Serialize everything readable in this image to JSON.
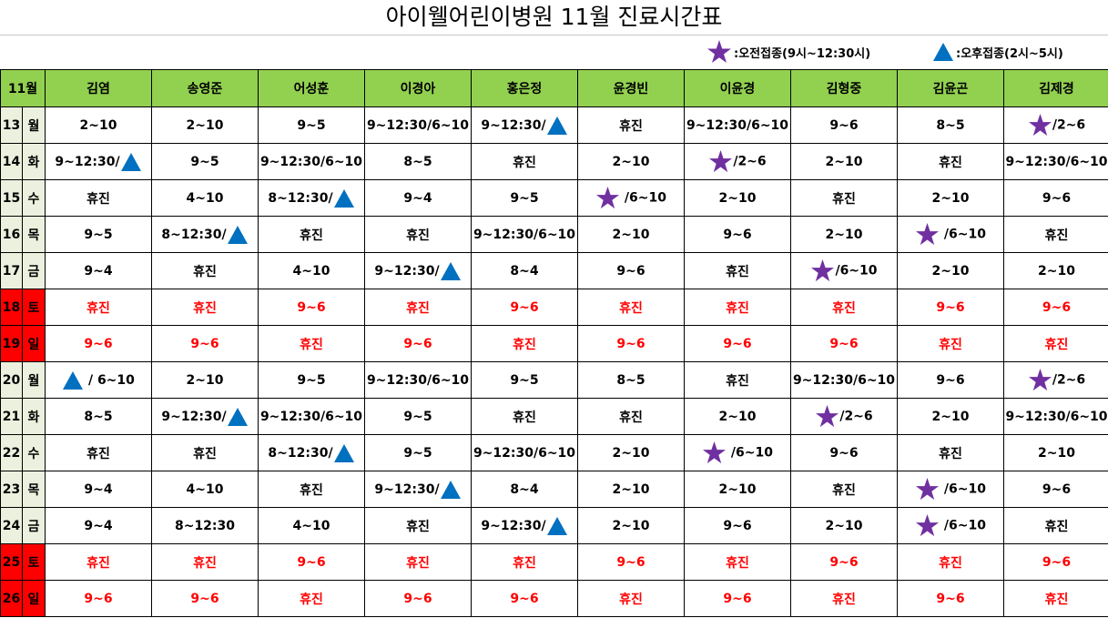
{
  "title": "아이웰어린이병원  11월  진료시간표",
  "legend": {
    "am_label": ":오전접종(9시~12:30시)",
    "pm_label": ":오후접종(2시~5시)",
    "am_icon": "star-icon",
    "pm_icon": "triangle-icon",
    "star_color": "#7030a0",
    "triangle_color": "#0070c0"
  },
  "colors": {
    "header_bg": "#92d050",
    "day_bg": "#ebf1de",
    "weekend_bg": "#ff0000",
    "weekend_text": "#ff0000"
  },
  "month_label": "11월",
  "doctors": [
    "김염",
    "송영준",
    "어성훈",
    "이경아",
    "홍은정",
    "윤경빈",
    "이윤경",
    "김형중",
    "김윤곤",
    "김제경"
  ],
  "rows": [
    {
      "day": "13",
      "weekday": "월",
      "weekend": false,
      "cells": [
        {
          "text": "2~10"
        },
        {
          "text": "2~10"
        },
        {
          "text": "9~5"
        },
        {
          "text": "9~12:30/6~10"
        },
        {
          "text": "9~12:30/",
          "icon": "triangle",
          "pos": "after"
        },
        {
          "text": "휴진"
        },
        {
          "text": "9~12:30/6~10"
        },
        {
          "text": "9~6"
        },
        {
          "text": "8~5"
        },
        {
          "text": "/2~6",
          "icon": "star",
          "pos": "before"
        }
      ]
    },
    {
      "day": "14",
      "weekday": "화",
      "weekend": false,
      "cells": [
        {
          "text": "9~12:30/",
          "icon": "triangle",
          "pos": "after"
        },
        {
          "text": "9~5"
        },
        {
          "text": "9~12:30/6~10"
        },
        {
          "text": "8~5"
        },
        {
          "text": "휴진"
        },
        {
          "text": "2~10"
        },
        {
          "text": "/2~6",
          "icon": "star",
          "pos": "before"
        },
        {
          "text": "2~10"
        },
        {
          "text": "휴진"
        },
        {
          "text": "9~12:30/6~10"
        }
      ]
    },
    {
      "day": "15",
      "weekday": "수",
      "weekend": false,
      "cells": [
        {
          "text": "휴진"
        },
        {
          "text": "4~10"
        },
        {
          "text": "8~12:30/",
          "icon": "triangle",
          "pos": "after"
        },
        {
          "text": "9~4"
        },
        {
          "text": "9~5"
        },
        {
          "text": " /6~10",
          "icon": "star",
          "pos": "before"
        },
        {
          "text": "2~10"
        },
        {
          "text": "휴진"
        },
        {
          "text": "2~10"
        },
        {
          "text": "9~6"
        }
      ]
    },
    {
      "day": "16",
      "weekday": "목",
      "weekend": false,
      "cells": [
        {
          "text": "9~5"
        },
        {
          "text": "8~12:30/",
          "icon": "triangle",
          "pos": "after"
        },
        {
          "text": "휴진"
        },
        {
          "text": "휴진"
        },
        {
          "text": "9~12:30/6~10"
        },
        {
          "text": "2~10"
        },
        {
          "text": "9~6"
        },
        {
          "text": "2~10"
        },
        {
          "text": " /6~10",
          "icon": "star",
          "pos": "before"
        },
        {
          "text": "휴진"
        }
      ]
    },
    {
      "day": "17",
      "weekday": "금",
      "weekend": false,
      "cells": [
        {
          "text": "9~4"
        },
        {
          "text": "휴진"
        },
        {
          "text": "4~10"
        },
        {
          "text": "9~12:30/",
          "icon": "triangle",
          "pos": "after"
        },
        {
          "text": "8~4"
        },
        {
          "text": "9~6"
        },
        {
          "text": "휴진"
        },
        {
          "text": "/6~10",
          "icon": "star",
          "pos": "before"
        },
        {
          "text": "2~10"
        },
        {
          "text": "2~10"
        }
      ]
    },
    {
      "day": "18",
      "weekday": "토",
      "weekend": true,
      "cells": [
        {
          "text": "휴진"
        },
        {
          "text": "휴진"
        },
        {
          "text": "9~6"
        },
        {
          "text": "휴진"
        },
        {
          "text": "9~6"
        },
        {
          "text": "휴진"
        },
        {
          "text": "휴진"
        },
        {
          "text": "휴진"
        },
        {
          "text": "9~6"
        },
        {
          "text": "9~6"
        }
      ]
    },
    {
      "day": "19",
      "weekday": "일",
      "weekend": true,
      "cells": [
        {
          "text": "9~6"
        },
        {
          "text": "9~6"
        },
        {
          "text": "휴진"
        },
        {
          "text": "9~6"
        },
        {
          "text": "휴진"
        },
        {
          "text": "9~6"
        },
        {
          "text": "9~6"
        },
        {
          "text": "9~6"
        },
        {
          "text": "휴진"
        },
        {
          "text": "휴진"
        }
      ]
    },
    {
      "day": "20",
      "weekday": "월",
      "weekend": false,
      "cells": [
        {
          "text": " / 6~10",
          "icon": "triangle",
          "pos": "before"
        },
        {
          "text": "2~10"
        },
        {
          "text": "9~5"
        },
        {
          "text": "9~12:30/6~10"
        },
        {
          "text": "9~5"
        },
        {
          "text": "8~5"
        },
        {
          "text": "휴진"
        },
        {
          "text": "9~12:30/6~10"
        },
        {
          "text": "9~6"
        },
        {
          "text": "/2~6",
          "icon": "star",
          "pos": "before"
        }
      ]
    },
    {
      "day": "21",
      "weekday": "화",
      "weekend": false,
      "cells": [
        {
          "text": "8~5"
        },
        {
          "text": "9~12:30/",
          "icon": "triangle",
          "pos": "after"
        },
        {
          "text": "9~12:30/6~10"
        },
        {
          "text": "9~5"
        },
        {
          "text": "휴진"
        },
        {
          "text": "휴진"
        },
        {
          "text": "2~10"
        },
        {
          "text": "/2~6",
          "icon": "star",
          "pos": "before"
        },
        {
          "text": "2~10"
        },
        {
          "text": "9~12:30/6~10"
        }
      ]
    },
    {
      "day": "22",
      "weekday": "수",
      "weekend": false,
      "cells": [
        {
          "text": "휴진"
        },
        {
          "text": "휴진"
        },
        {
          "text": "8~12:30/",
          "icon": "triangle",
          "pos": "after"
        },
        {
          "text": "9~5"
        },
        {
          "text": "9~12:30/6~10"
        },
        {
          "text": "2~10"
        },
        {
          "text": " /6~10",
          "icon": "star",
          "pos": "before"
        },
        {
          "text": "9~6"
        },
        {
          "text": "휴진"
        },
        {
          "text": "2~10"
        }
      ]
    },
    {
      "day": "23",
      "weekday": "목",
      "weekend": false,
      "cells": [
        {
          "text": "9~4"
        },
        {
          "text": "4~10"
        },
        {
          "text": "휴진"
        },
        {
          "text": "9~12:30/",
          "icon": "triangle",
          "pos": "after"
        },
        {
          "text": "8~4"
        },
        {
          "text": "2~10"
        },
        {
          "text": "2~10"
        },
        {
          "text": "휴진"
        },
        {
          "text": " /6~10",
          "icon": "star",
          "pos": "before"
        },
        {
          "text": "9~6"
        }
      ]
    },
    {
      "day": "24",
      "weekday": "금",
      "weekend": false,
      "cells": [
        {
          "text": "9~4"
        },
        {
          "text": "8~12:30"
        },
        {
          "text": "4~10"
        },
        {
          "text": "휴진"
        },
        {
          "text": "9~12:30/",
          "icon": "triangle",
          "pos": "after"
        },
        {
          "text": "2~10"
        },
        {
          "text": "9~6"
        },
        {
          "text": "2~10"
        },
        {
          "text": " /6~10",
          "icon": "star",
          "pos": "before"
        },
        {
          "text": "휴진"
        }
      ]
    },
    {
      "day": "25",
      "weekday": "토",
      "weekend": true,
      "cells": [
        {
          "text": "휴진"
        },
        {
          "text": "휴진"
        },
        {
          "text": "9~6"
        },
        {
          "text": "휴진"
        },
        {
          "text": "휴진"
        },
        {
          "text": "9~6"
        },
        {
          "text": "휴진"
        },
        {
          "text": "9~6"
        },
        {
          "text": "휴진"
        },
        {
          "text": "9~6"
        }
      ]
    },
    {
      "day": "26",
      "weekday": "일",
      "weekend": true,
      "cells": [
        {
          "text": "9~6"
        },
        {
          "text": "9~6"
        },
        {
          "text": "휴진"
        },
        {
          "text": "9~6"
        },
        {
          "text": "9~6"
        },
        {
          "text": "휴진"
        },
        {
          "text": "9~6"
        },
        {
          "text": "휴진"
        },
        {
          "text": "9~6"
        },
        {
          "text": "휴진"
        }
      ]
    }
  ]
}
